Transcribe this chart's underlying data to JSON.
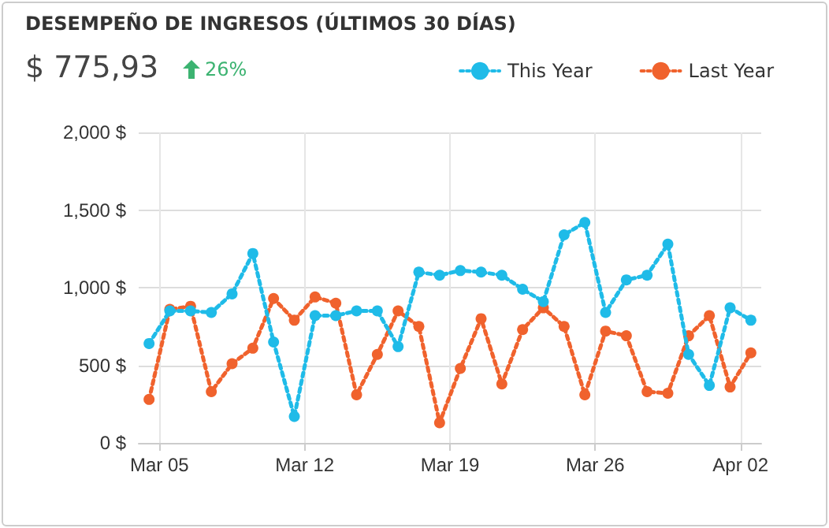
{
  "chart_data": {
    "type": "line",
    "title": "DESEMPEÑO DE INGRESOS (ÚLTIMOS 30 DÍAS)",
    "subtitle": "$ 775,93",
    "annotations": [
      "26%"
    ],
    "x": [
      "--03-04T12:00",
      "--03-05T12:00",
      "--03-06T12:00",
      "--03-07T12:00",
      "--03-08T12:00",
      "--03-09T12:00",
      "--03-10T12:00",
      "--03-11T12:00",
      "--03-12T12:00",
      "--03-13T12:00",
      "--03-14T12:00",
      "--03-15T12:00",
      "--03-16T12:00",
      "--03-17T12:00",
      "--03-18T12:00",
      "--03-19T12:00",
      "--03-20T12:00",
      "--03-21T12:00",
      "--03-22T12:00",
      "--03-23T12:00",
      "--03-24T12:00",
      "--03-25T12:00",
      "--03-26T12:00",
      "--03-27T12:00",
      "--03-28T12:00",
      "--03-29T12:00",
      "--03-30T12:00",
      "--03-31T12:00",
      "--04-01T12:00",
      "--04-02T12:00"
    ],
    "series": [
      {
        "name": "This Year",
        "color": "#1fbbe8",
        "values": [
          640,
          850,
          850,
          840,
          960,
          1220,
          650,
          170,
          820,
          820,
          850,
          850,
          620,
          1100,
          1080,
          1110,
          1100,
          1080,
          990,
          910,
          1340,
          1420,
          840,
          1050,
          1080,
          1280,
          570,
          370,
          870,
          790
        ]
      },
      {
        "name": "Last Year",
        "color": "#f0622d",
        "values": [
          280,
          860,
          880,
          330,
          510,
          610,
          930,
          790,
          940,
          900,
          310,
          570,
          850,
          750,
          130,
          480,
          800,
          380,
          730,
          870,
          750,
          310,
          720,
          690,
          330,
          320,
          690,
          820,
          360,
          580
        ]
      }
    ],
    "xlim": [
      "--03-04",
      "--04-03"
    ],
    "xticks": [
      {
        "value": "--03-05",
        "label": "Mar 05"
      },
      {
        "value": "--03-12",
        "label": "Mar 12"
      },
      {
        "value": "--03-19",
        "label": "Mar 19"
      },
      {
        "value": "--03-26",
        "label": "Mar 26"
      },
      {
        "value": "--04-02",
        "label": "Apr 02"
      }
    ],
    "ylim": [
      0,
      2000
    ],
    "yticks": [
      {
        "value": 0,
        "label": "0 $"
      },
      {
        "value": 500,
        "label": "500 $"
      },
      {
        "value": 1000,
        "label": "1,000 $"
      },
      {
        "value": 1500,
        "label": "1,500 $"
      },
      {
        "value": 2000,
        "label": "2,000 $"
      }
    ],
    "grid": true,
    "legend": "top right",
    "marker": "circle",
    "line_style": "dotted"
  }
}
